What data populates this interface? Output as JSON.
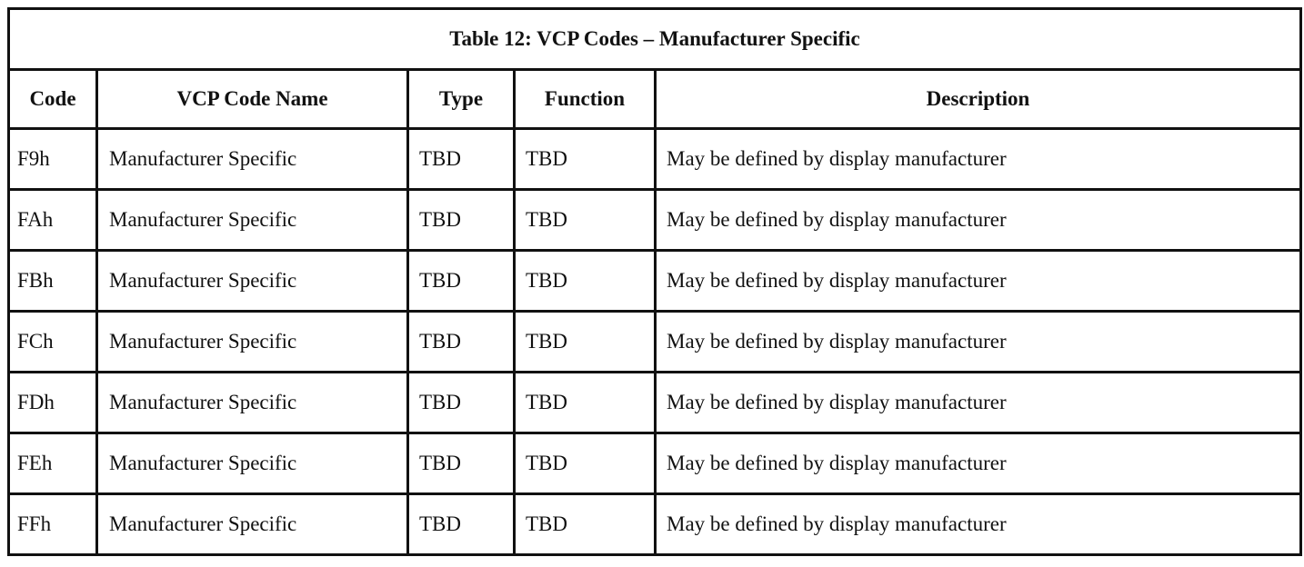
{
  "table": {
    "title": "Table 12: VCP Codes – Manufacturer Specific",
    "headers": [
      "Code",
      "VCP Code Name",
      "Type",
      "Function",
      "Description"
    ],
    "rows": [
      [
        "F9h",
        "Manufacturer Specific",
        "TBD",
        "TBD",
        "May be defined by display manufacturer"
      ],
      [
        "FAh",
        "Manufacturer Specific",
        "TBD",
        "TBD",
        "May be defined by display manufacturer"
      ],
      [
        "FBh",
        "Manufacturer Specific",
        "TBD",
        "TBD",
        "May be defined by display manufacturer"
      ],
      [
        "FCh",
        "Manufacturer Specific",
        "TBD",
        "TBD",
        "May be defined by display manufacturer"
      ],
      [
        "FDh",
        "Manufacturer Specific",
        "TBD",
        "TBD",
        "May be defined by display manufacturer"
      ],
      [
        "FEh",
        "Manufacturer Specific",
        "TBD",
        "TBD",
        "May be defined by display manufacturer"
      ],
      [
        "FFh",
        "Manufacturer Specific",
        "TBD",
        "TBD",
        "May be defined by display manufacturer"
      ]
    ]
  }
}
